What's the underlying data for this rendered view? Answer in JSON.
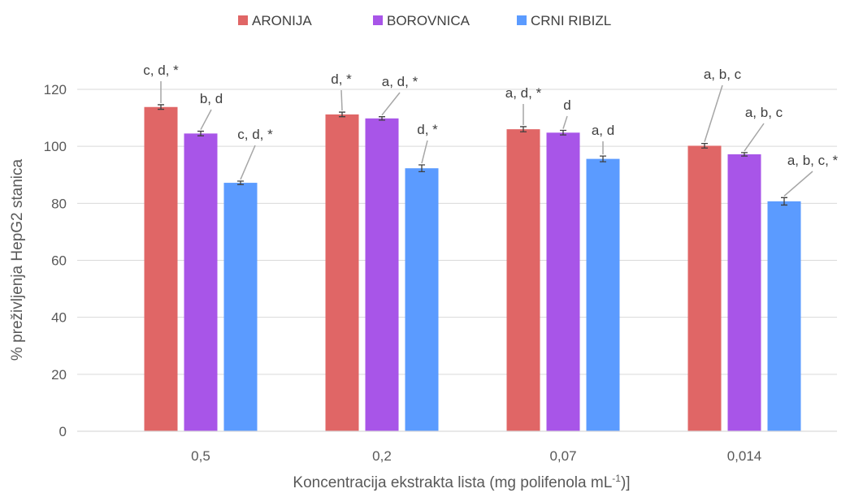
{
  "chart_data": {
    "type": "bar",
    "categories": [
      "0,5",
      "0,2",
      "0,07",
      "0,014"
    ],
    "series": [
      {
        "name": "ARONIJA",
        "color": "#e06666",
        "values": [
          113.8,
          111.2,
          106.0,
          100.2
        ],
        "errors": [
          0.8,
          0.8,
          0.9,
          0.8
        ],
        "annotations": [
          "c, d, *",
          "d, *",
          "a, d, *",
          "a, b, c"
        ]
      },
      {
        "name": "BOROVNICA",
        "color": "#a855e8",
        "values": [
          104.5,
          109.8,
          104.8,
          97.2
        ],
        "errors": [
          0.8,
          0.6,
          0.8,
          0.6
        ],
        "annotations": [
          "b, d",
          "a, d, *",
          "d",
          "a, b, c"
        ]
      },
      {
        "name": "CRNI RIBIZL",
        "color": "#5b9bff",
        "values": [
          87.2,
          92.3,
          95.6,
          80.7
        ],
        "errors": [
          0.6,
          1.2,
          1.0,
          1.3
        ],
        "annotations": [
          "c, d, *",
          "d, *",
          "a, d",
          "a, b, c, *"
        ]
      }
    ],
    "ylim": [
      0,
      120
    ],
    "yticks": [
      0,
      20,
      40,
      60,
      80,
      100,
      120
    ],
    "ytick_labels": [
      "0",
      "20",
      "40",
      "60",
      "80",
      "100",
      "120"
    ],
    "ylabel": "% preživljenja HepG2 stanica",
    "xlabel_main": "Koncentracija ekstrakta lista (mg polifenola mL",
    "xlabel_sup": "-1",
    "xlabel_end": ")]",
    "grid": true,
    "legend_position": "top-center"
  }
}
